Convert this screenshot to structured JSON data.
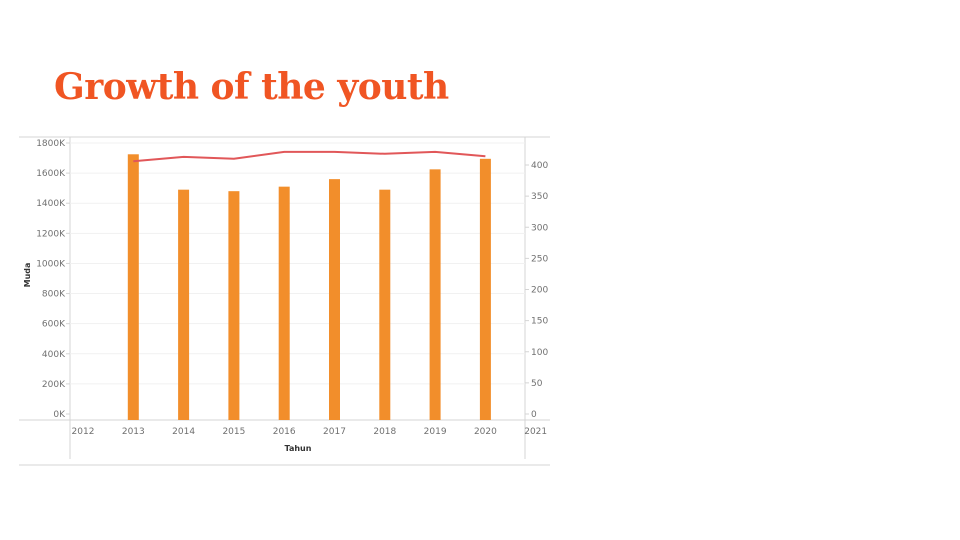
{
  "title": "Growth of the youth",
  "colors": {
    "title": "#f05523",
    "bars": "#f28e2b",
    "line": "#e15759"
  },
  "chart_data": {
    "type": "bar",
    "x_ticks": [
      "2012",
      "2013",
      "2014",
      "2015",
      "2016",
      "2017",
      "2018",
      "2019",
      "2020",
      "2021"
    ],
    "categories": [
      "2013",
      "2014",
      "2015",
      "2016",
      "2017",
      "2018",
      "2019",
      "2020"
    ],
    "series": [
      {
        "type": "bar",
        "axis": "left",
        "values": [
          1725000,
          1490000,
          1480000,
          1510000,
          1560000,
          1490000,
          1625000,
          1695000
        ]
      },
      {
        "type": "line",
        "axis": "right",
        "values": [
          406,
          413,
          410,
          421,
          421,
          418,
          421,
          414
        ]
      }
    ],
    "xlabel": "Tahun",
    "ylabel": "Muda",
    "y_left": {
      "ticks": [
        "0K",
        "200K",
        "400K",
        "600K",
        "800K",
        "1000K",
        "1200K",
        "1400K",
        "1600K",
        "1800K"
      ],
      "ylim": [
        0,
        1800000
      ]
    },
    "y_right": {
      "ticks": [
        "0",
        "50",
        "100",
        "150",
        "200",
        "250",
        "300",
        "350",
        "400"
      ],
      "ylim": [
        0,
        400
      ]
    },
    "grid": true,
    "legend": "none"
  }
}
